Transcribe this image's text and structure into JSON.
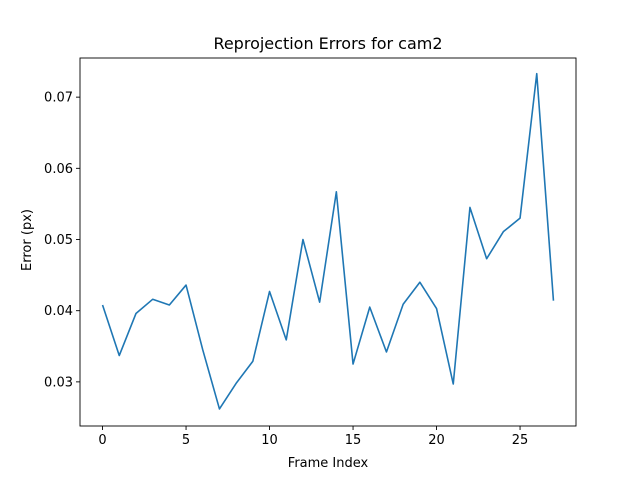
{
  "chart_data": {
    "type": "line",
    "title": "Reprojection Errors for cam2",
    "xlabel": "Frame Index",
    "ylabel": "Error (px)",
    "xlim": [
      -1.35,
      28.35
    ],
    "ylim": [
      0.0238,
      0.0755
    ],
    "xticks": [
      0,
      5,
      10,
      15,
      20,
      25
    ],
    "yticks": [
      0.03,
      0.04,
      0.05,
      0.06,
      0.07
    ],
    "ytick_labels": [
      "0.03",
      "0.04",
      "0.05",
      "0.06",
      "0.07"
    ],
    "grid": false,
    "line_color": "#1f77b4",
    "series": [
      {
        "x": [
          0,
          1,
          2,
          3,
          4,
          5,
          6,
          7,
          8,
          9,
          10,
          11,
          12,
          13,
          14,
          15,
          16,
          17,
          18,
          19,
          20,
          21,
          22,
          23,
          24,
          25,
          26,
          27
        ],
        "values": [
          0.0408,
          0.0337,
          0.0396,
          0.0416,
          0.0408,
          0.0436,
          0.0345,
          0.0262,
          0.0298,
          0.0329,
          0.0427,
          0.0359,
          0.05,
          0.0412,
          0.0567,
          0.0325,
          0.0405,
          0.0342,
          0.0409,
          0.044,
          0.0403,
          0.0297,
          0.0545,
          0.0473,
          0.0511,
          0.053,
          0.0733,
          0.0414
        ]
      }
    ]
  }
}
